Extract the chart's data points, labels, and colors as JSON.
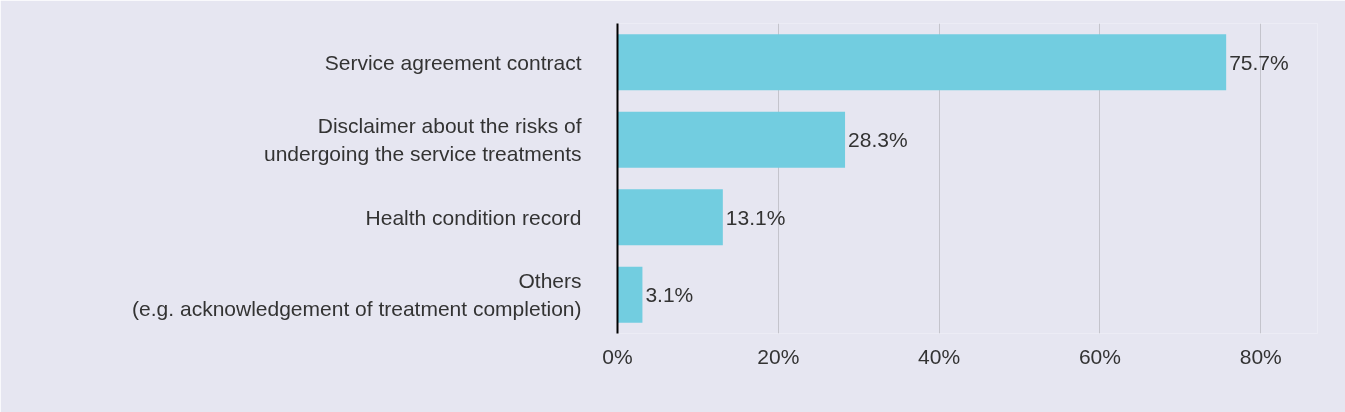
{
  "chart_data": {
    "type": "bar",
    "orientation": "horizontal",
    "categories": [
      "Service agreement contract",
      "Disclaimer about the risks of\nundergoing the service treatments",
      "Health condition record",
      "Others\n(e.g. acknowledgement of treatment completion)"
    ],
    "values": [
      75.7,
      28.3,
      13.1,
      3.1
    ],
    "value_labels": [
      "75.7%",
      "28.3%",
      "13.1%",
      "3.1%"
    ],
    "color": "#72cde0",
    "xlim": [
      0,
      80
    ],
    "xticks": [
      {
        "value": 0,
        "label": "0%"
      },
      {
        "value": 20,
        "label": "20%"
      },
      {
        "value": 40,
        "label": "40%"
      },
      {
        "value": 60,
        "label": "60%"
      },
      {
        "value": 80,
        "label": "80%"
      }
    ],
    "grid": "x"
  }
}
